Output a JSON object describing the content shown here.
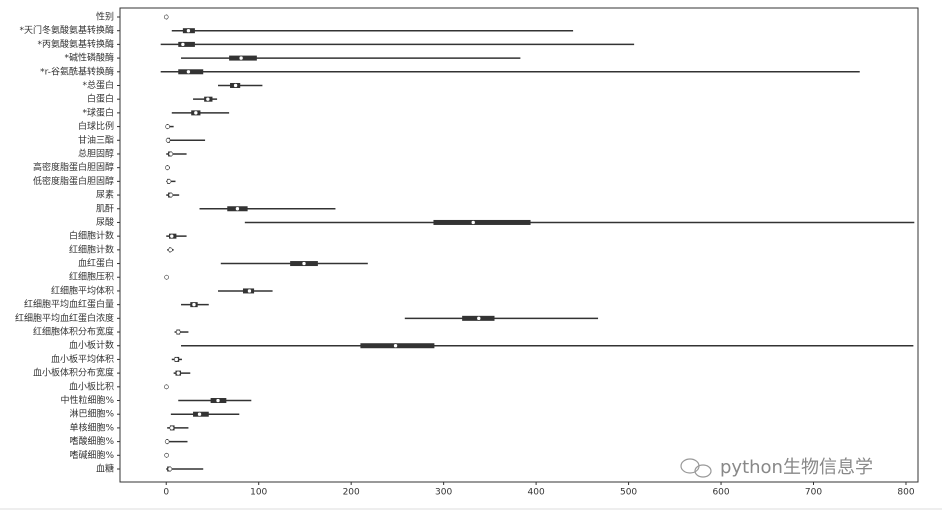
{
  "chart_data": {
    "type": "box",
    "categories": [
      "性别",
      "*天门冬氨酸氨基转换酶",
      "*丙氨酸氨基转换酶",
      "*碱性磷酸酶",
      "*r-谷氨酰基转换酶",
      "*总蛋白",
      "白蛋白",
      "*球蛋白",
      "白球比例",
      "甘油三酯",
      "总胆固醇",
      "高密度脂蛋白胆固醇",
      "低密度脂蛋白胆固醇",
      "尿素",
      "肌酐",
      "尿酸",
      "白细胞计数",
      "红细胞计数",
      "血红蛋白",
      "红细胞压积",
      "红细胞平均体积",
      "红细胞平均血红蛋白量",
      "红细胞平均血红蛋白浓度",
      "红细胞体积分布宽度",
      "血小板计数",
      "血小板平均体积",
      "血小板体积分布宽度",
      "血小板比积",
      "中性粒细胞%",
      "淋巴细胞%",
      "单核细胞%",
      "嗜酸细胞%",
      "嗜碱细胞%",
      "血糖"
    ],
    "min": [
      0,
      6,
      -6,
      16,
      -6,
      56,
      29,
      6,
      0,
      0,
      0,
      0,
      0,
      0,
      36,
      85,
      0,
      1,
      59,
      0,
      56,
      16,
      258,
      9,
      16,
      6,
      8,
      0,
      13,
      5,
      1,
      0,
      0,
      0
    ],
    "q1": [
      0,
      18,
      13,
      68,
      13,
      69,
      41,
      27,
      0.5,
      1,
      2,
      0.5,
      1,
      2,
      66,
      289,
      3,
      3,
      134,
      0.3,
      83,
      26,
      320,
      11,
      210,
      9,
      10,
      0.1,
      48,
      29,
      4,
      0.3,
      0.2,
      1
    ],
    "median": [
      0,
      24,
      18,
      81,
      24,
      75,
      45,
      32,
      1.5,
      2,
      5,
      1.3,
      3,
      5,
      77,
      332,
      6,
      4.5,
      149,
      0.4,
      90,
      30,
      338,
      13,
      248,
      11,
      13,
      0.2,
      56,
      36,
      6,
      1,
      0.4,
      4
    ],
    "q3": [
      1,
      31,
      31,
      98,
      40,
      80,
      50,
      37,
      2,
      4,
      6,
      2,
      4,
      6,
      88,
      394,
      11,
      5,
      164,
      0.5,
      95,
      34,
      355,
      15,
      290,
      14,
      16,
      0.3,
      65,
      46,
      9,
      2,
      0.6,
      5
    ],
    "max": [
      1,
      440,
      506,
      383,
      750,
      104,
      55,
      68,
      8,
      42,
      22,
      4,
      10,
      14,
      183,
      809,
      22,
      8,
      218,
      2,
      115,
      46,
      467,
      24,
      808,
      17,
      26,
      1,
      92,
      79,
      24,
      23,
      2,
      40
    ],
    "color": "#333333",
    "xlim": [
      -50,
      813
    ],
    "xticks": [
      0,
      100,
      200,
      300,
      400,
      500,
      600,
      700,
      800
    ],
    "annotation": "python生物信息学"
  }
}
